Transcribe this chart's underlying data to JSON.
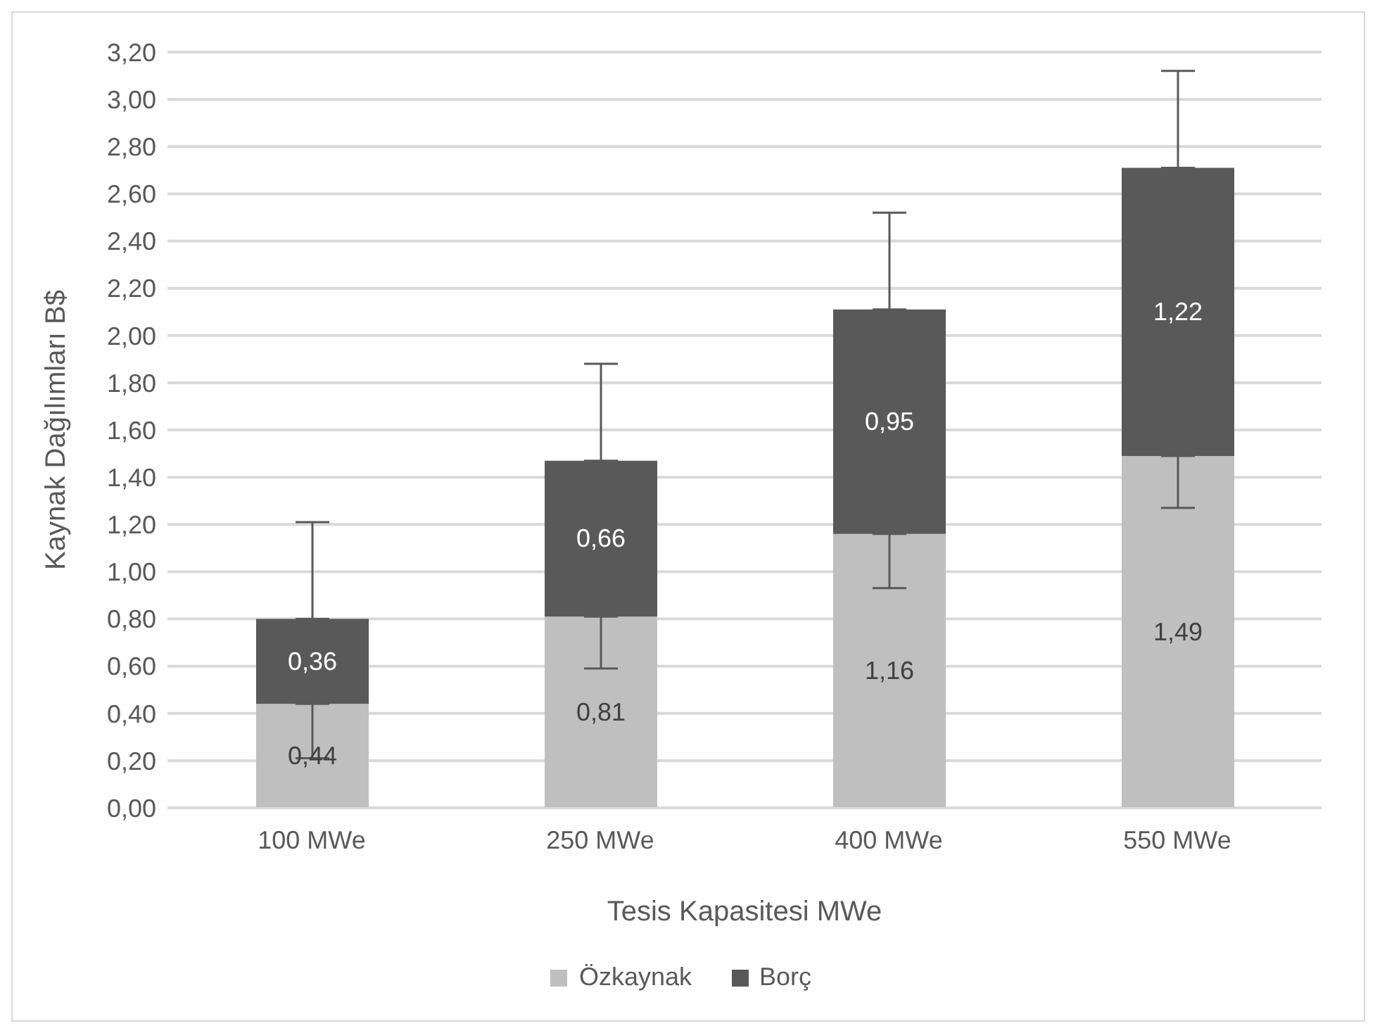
{
  "chart_data": {
    "type": "bar",
    "stacked": true,
    "xlabel": "Tesis Kapasitesi MWe",
    "ylabel": "Kaynak Dağılımları B$",
    "categories": [
      "100 MWe",
      "250 MWe",
      "400 MWe",
      "550 MWe"
    ],
    "series": [
      {
        "name": "Özkaynak",
        "color": "#bfbfbf",
        "values": [
          0.44,
          0.81,
          1.16,
          1.49
        ],
        "value_labels": [
          "0,44",
          "0,81",
          "1,16",
          "1,49"
        ],
        "errors": [
          [
            0.21,
            0.44
          ],
          [
            0.59,
            0.81
          ],
          [
            0.93,
            1.16
          ],
          [
            1.27,
            1.49
          ]
        ]
      },
      {
        "name": "Borç",
        "color": "#595959",
        "values": [
          0.36,
          0.66,
          0.95,
          1.22
        ],
        "value_labels": [
          "0,36",
          "0,66",
          "0,95",
          "1,22"
        ],
        "errors": [
          [
            0.8,
            1.21
          ],
          [
            1.47,
            1.88
          ],
          [
            2.11,
            2.52
          ],
          [
            2.71,
            3.12
          ]
        ]
      }
    ],
    "ylim": [
      0,
      3.2
    ],
    "yticks": [
      {
        "value": 0,
        "label": "0,00"
      },
      {
        "value": 0.2,
        "label": "0,20"
      },
      {
        "value": 0.4,
        "label": "0,40"
      },
      {
        "value": 0.6,
        "label": "0,60"
      },
      {
        "value": 0.8,
        "label": "0,80"
      },
      {
        "value": 1,
        "label": "1,00"
      },
      {
        "value": 1.2,
        "label": "1,20"
      },
      {
        "value": 1.4,
        "label": "1,40"
      },
      {
        "value": 1.6,
        "label": "1,60"
      },
      {
        "value": 1.8,
        "label": "1,80"
      },
      {
        "value": 2,
        "label": "2,00"
      },
      {
        "value": 2.2,
        "label": "2,20"
      },
      {
        "value": 2.4,
        "label": "2,40"
      },
      {
        "value": 2.6,
        "label": "2,60"
      },
      {
        "value": 2.8,
        "label": "2,80"
      },
      {
        "value": 3,
        "label": "3,00"
      },
      {
        "value": 3.2,
        "label": "3,20"
      }
    ],
    "grid": "y",
    "legend": "bottom"
  }
}
